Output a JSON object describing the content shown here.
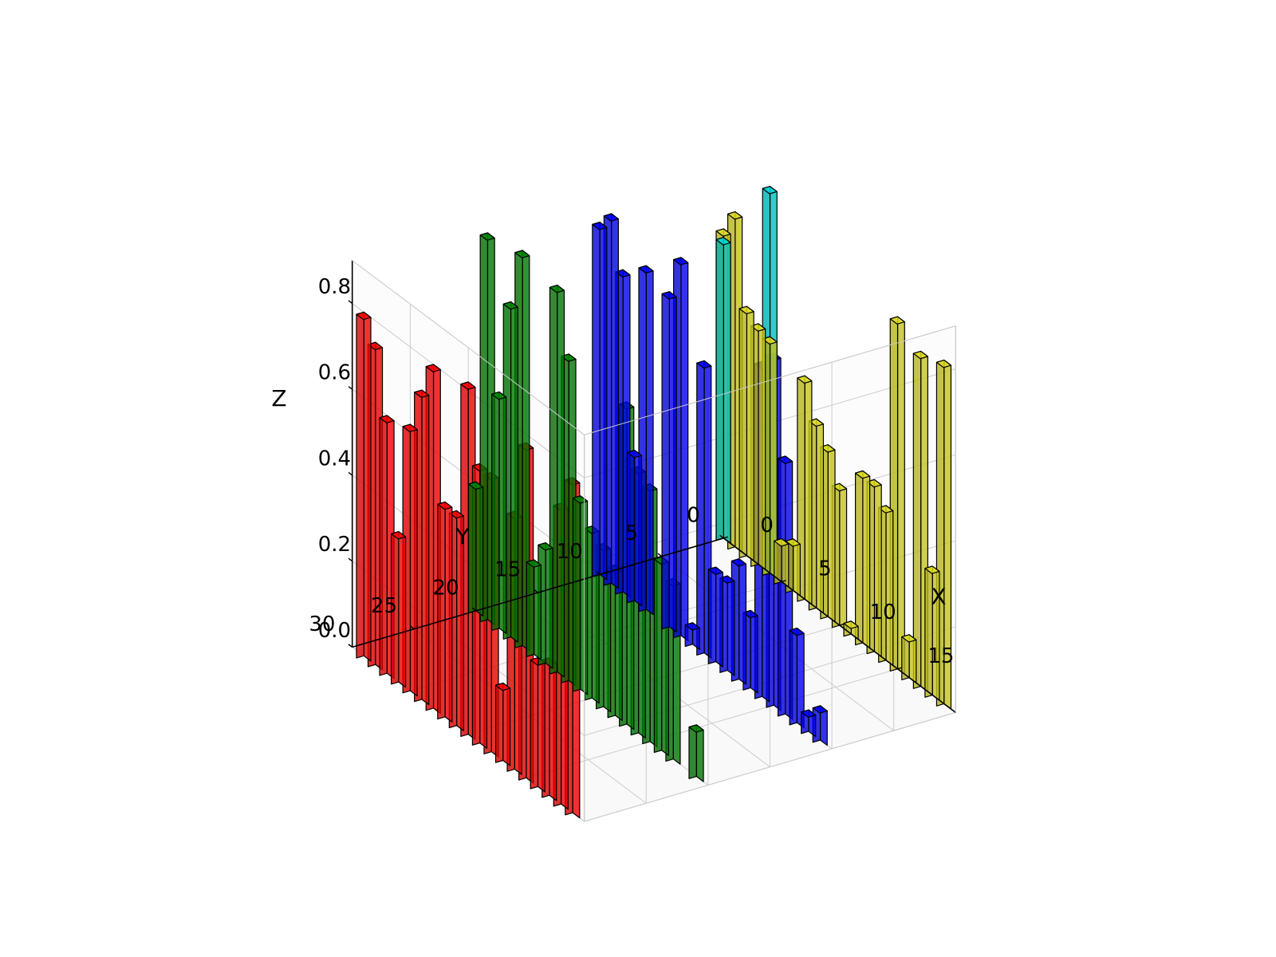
{
  "chart": {
    "type": "bar3d",
    "background_color": "#ffffff",
    "pane_fill": "#f2f2f2",
    "pane_fill_opacity": 0.24,
    "pane_edge": "#cccccc",
    "grid_color": "#cccccc",
    "axis_line_color": "#000000",
    "bar_edge_color": "#000000",
    "bar_edge_width": 1.2,
    "bar_alpha": 0.8,
    "axes": {
      "x": {
        "label": "X",
        "ticks": [
          0,
          5,
          10,
          15
        ],
        "lim": [
          0,
          20
        ],
        "fontsize": 28
      },
      "y": {
        "label": "Y",
        "ticks": [
          0,
          5,
          10,
          15,
          20,
          25,
          30
        ],
        "lim": [
          0,
          30
        ],
        "fontsize": 28
      },
      "z": {
        "label": "Z",
        "ticks": [
          0.0,
          0.2,
          0.4,
          0.6,
          0.8
        ],
        "lim": [
          0,
          0.9
        ],
        "fontsize": 28
      }
    },
    "series": [
      {
        "y": 0,
        "color": "#d6d420",
        "z": [
          0.72,
          0.78,
          0.58,
          0.56,
          0.55,
          0.1,
          0.12,
          0.52,
          0.44,
          0.4,
          0.33,
          0.03,
          0.4,
          0.4,
          0.36,
          0.82,
          0.1,
          0.78,
          0.3,
          0.8
        ]
      },
      {
        "y": 10,
        "color": "#0000ff",
        "z": [
          0.82,
          0.86,
          0.75,
          0.35,
          0.8,
          0.0,
          0.78,
          0.88,
          0.05,
          0.68,
          0.22,
          0.22,
          0.28,
          0.18,
          0.78,
          0.82,
          0.6,
          0.22,
          0.05,
          0.08
        ]
      },
      {
        "y": 20,
        "color": "#008000",
        "z": [
          0.3,
          0.9,
          0.55,
          0.78,
          0.92,
          0.22,
          0.28,
          0.9,
          0.76,
          0.45,
          0.4,
          0.38,
          0.35,
          0.75,
          0.62,
          0.6,
          0.45,
          0.42,
          0.0,
          0.12
        ]
      },
      {
        "y": 30,
        "color": "#ff0000",
        "z": [
          0.0,
          0.8,
          0.75,
          0.6,
          0.35,
          0.62,
          0.72,
          0.8,
          0.5,
          0.5,
          0.82,
          0.65,
          0.65,
          0.18,
          0.6,
          0.78,
          0.3,
          0.32,
          0.7,
          0.78
        ]
      },
      {
        "y": 0,
        "color": "#00ced1",
        "z": [
          0.7,
          0.0,
          0.0,
          0.0,
          0.9,
          0.0,
          0.0,
          0.0,
          0.0,
          0.0,
          0.0,
          0.0,
          0.0,
          0.0,
          0.0,
          0.0,
          0.0,
          0.0,
          0.0,
          0.0
        ]
      }
    ],
    "view": {
      "elev_deg": 28,
      "azim_deg": -58
    },
    "bar_dx": 0.6,
    "bar_dy": 0.6,
    "label_fontsize": 28,
    "tick_fontsize": 26
  }
}
